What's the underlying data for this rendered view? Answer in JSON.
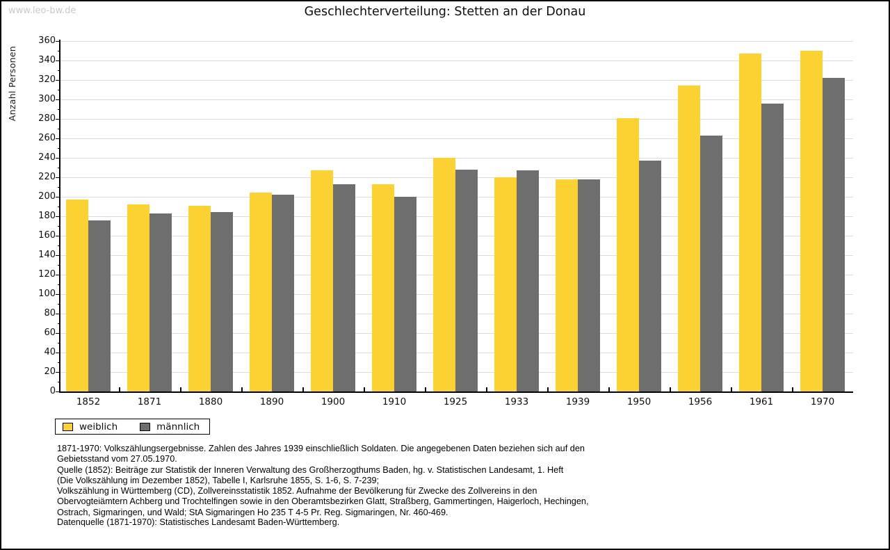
{
  "watermark": "www.leo-bw.de",
  "title": "Geschlechterverteilung: Stetten an der Donau",
  "chart_data": {
    "type": "bar",
    "title": "Geschlechterverteilung: Stetten an der Donau",
    "categories": [
      "1852",
      "1871",
      "1880",
      "1890",
      "1900",
      "1910",
      "1925",
      "1933",
      "1939",
      "1950",
      "1956",
      "1961",
      "1970"
    ],
    "series": [
      {
        "name": "weiblich",
        "color": "#FCD232",
        "values": [
          197,
          192,
          191,
          204,
          227,
          213,
          240,
          220,
          218,
          281,
          314,
          347,
          350
        ]
      },
      {
        "name": "männlich",
        "color": "#6E6E6E",
        "values": [
          176,
          183,
          184,
          202,
          213,
          200,
          228,
          227,
          218,
          237,
          263,
          296,
          322
        ]
      }
    ],
    "xlabel": "",
    "ylabel": "Anzahl Personen",
    "ylim": [
      0,
      360
    ],
    "ytick_step": 20,
    "ytick_minor_step": 10,
    "grid": true,
    "legend_position": "bottom-left"
  },
  "legend": {
    "items": [
      {
        "label": "weiblich",
        "color": "#FCD232"
      },
      {
        "label": "männlich",
        "color": "#6E6E6E"
      }
    ]
  },
  "footnotes": {
    "lines": [
      "1871-1970: Volkszählungsergebnisse. Zahlen des Jahres 1939 einschließlich Soldaten. Die angegebenen Daten beziehen sich auf den",
      "Gebietsstand vom 27.05.1970.",
      "Quelle (1852): Beiträge zur Statistik der Inneren Verwaltung des Großherzogthums Baden, hg. v. Statistischen Landesamt, 1. Heft",
      "(Die Volkszählung im Dezember 1852), Tabelle I, Karlsruhe 1855, S. 1-6, S. 7-239;",
      "Volkszählung in Württemberg (CD), Zollvereinsstatistik 1852. Aufnahme der Bevölkerung für Zwecke des Zollvereins in den",
      "Obervogteiämtern Achberg und Trochtelfingen sowie in den Oberamtsbezirken Glatt, Straßberg, Gammertingen, Haigerloch, Hechingen,",
      "Ostrach, Sigmaringen, und Wald; StA Sigmaringen Ho 235 T 4-5 Pr. Reg. Sigmaringen, Nr. 460-469."
    ],
    "datasource": "Datenquelle (1871-1970): Statistisches Landesamt Baden-Württemberg."
  },
  "colors": {
    "grid": "#DCDCDC",
    "axis": "#000000",
    "watermark": "#C9C9C9"
  }
}
